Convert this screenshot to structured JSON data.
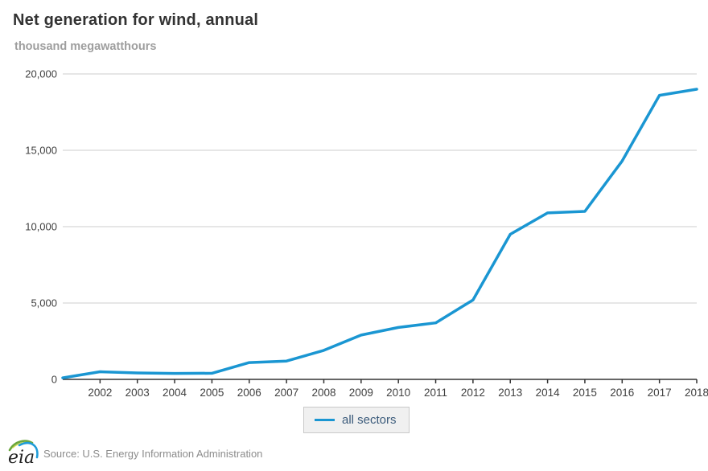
{
  "header": {
    "title": "Net generation for wind, annual",
    "subtitle": "thousand megawatthours"
  },
  "legend": {
    "items": [
      {
        "label": "all sectors",
        "color": "#1a96d2"
      }
    ]
  },
  "footer": {
    "logo_text": "eia",
    "source": "Source: U.S. Energy Information Administration"
  },
  "colors": {
    "line": "#1a96d2",
    "grid": "#cccccc",
    "axis": "#333333",
    "tick_label": "#404040",
    "title": "#333333",
    "subtitle": "#9e9e9e",
    "legend_text": "#3a5a7a",
    "legend_bg": "#f0f0f0",
    "source_text": "#8c8c8c"
  },
  "chart_data": {
    "type": "line",
    "title": "Net generation for wind, annual",
    "ylabel": "thousand megawatthours",
    "xlabel": "",
    "x": [
      2001,
      2002,
      2003,
      2004,
      2005,
      2006,
      2007,
      2008,
      2009,
      2010,
      2011,
      2012,
      2013,
      2014,
      2015,
      2016,
      2017,
      2018
    ],
    "series": [
      {
        "name": "all sectors",
        "values": [
          100,
          500,
          420,
          390,
          400,
          1100,
          1200,
          1900,
          2900,
          3400,
          3700,
          5200,
          9500,
          10900,
          11000,
          14300,
          18600,
          19000
        ]
      }
    ],
    "ylim": [
      0,
      20000
    ],
    "yticks": [
      0,
      5000,
      10000,
      15000,
      20000
    ],
    "xtick_labels": [
      "2002",
      "2003",
      "2004",
      "2005",
      "2006",
      "2007",
      "2008",
      "2009",
      "2010",
      "2011",
      "2012",
      "2013",
      "2014",
      "2015",
      "2016",
      "2017",
      "2018"
    ],
    "grid": true,
    "legend_position": "bottom"
  }
}
